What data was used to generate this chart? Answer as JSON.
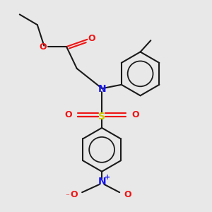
{
  "bg_color": "#e8e8e8",
  "bond_color": "#1a1a1a",
  "N_color": "#1414ee",
  "O_color": "#ee1414",
  "S_color": "#cccc00",
  "lw": 1.5,
  "fig_w": 3.0,
  "fig_h": 3.0,
  "dpi": 100,
  "xlim": [
    0,
    10
  ],
  "ylim": [
    0,
    10
  ]
}
